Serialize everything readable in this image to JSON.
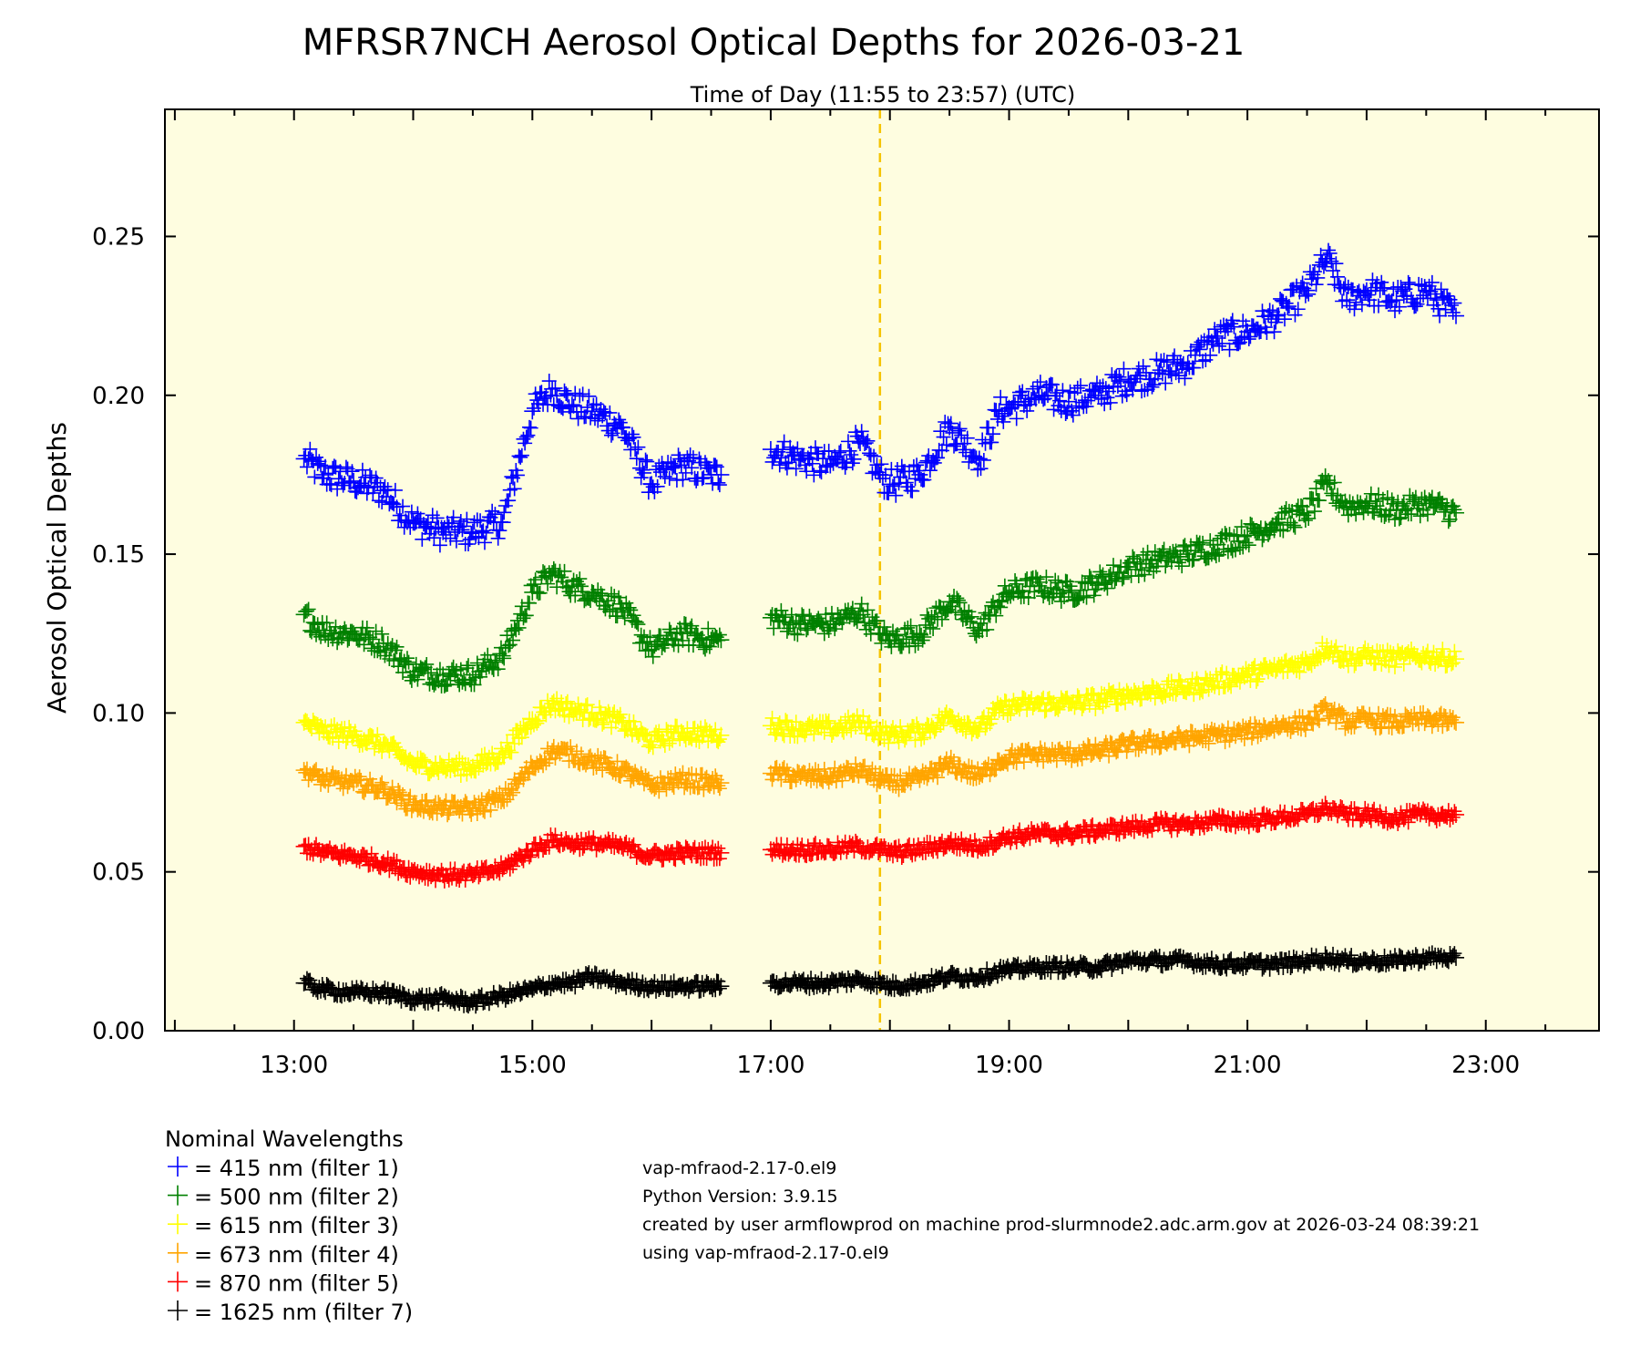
{
  "chart_data": {
    "type": "scatter",
    "title": "MFRSR7NCH Aerosol Optical Depths for 2026-03-21",
    "subtitle": "Time of Day (11:55 to 23:57) (UTC)",
    "xlabel": "",
    "ylabel": "Aerosol Optical Depths",
    "xlim": [
      "11:55",
      "23:57"
    ],
    "ylim": [
      0.0,
      0.29
    ],
    "x_ticks": [
      "13:00",
      "15:00",
      "17:00",
      "19:00",
      "21:00",
      "23:00"
    ],
    "y_ticks": [
      "0.00",
      "0.05",
      "0.10",
      "0.15",
      "0.20",
      "0.25"
    ],
    "marker": "+",
    "grid": false,
    "background_color": "#fefde0",
    "reference_line": {
      "x": "17:55",
      "color": "#f5c400",
      "style": "dashed"
    },
    "legend_title": "Nominal Wavelengths",
    "legend_placement": "bottom-left",
    "series": [
      {
        "name": "= 415 nm (filter 1)",
        "color": "#0000ff",
        "x": [
          "13:05",
          "13:15",
          "13:30",
          "13:45",
          "14:00",
          "14:15",
          "14:30",
          "14:45",
          "15:00",
          "15:10",
          "15:20",
          "15:30",
          "15:45",
          "16:00",
          "16:15",
          "16:30",
          "16:35",
          "17:00",
          "17:15",
          "17:30",
          "17:45",
          "17:55",
          "18:00",
          "18:15",
          "18:30",
          "18:45",
          "18:55",
          "19:00",
          "19:15",
          "19:30",
          "19:45",
          "20:00",
          "20:15",
          "20:30",
          "20:45",
          "21:00",
          "21:15",
          "21:30",
          "21:40",
          "21:50",
          "22:00",
          "22:15",
          "22:30",
          "22:45"
        ],
        "y": [
          0.18,
          0.175,
          0.173,
          0.17,
          0.16,
          0.157,
          0.157,
          0.16,
          0.195,
          0.202,
          0.197,
          0.195,
          0.19,
          0.172,
          0.178,
          0.175,
          0.175,
          0.183,
          0.18,
          0.178,
          0.185,
          0.175,
          0.172,
          0.175,
          0.19,
          0.18,
          0.195,
          0.196,
          0.2,
          0.198,
          0.2,
          0.205,
          0.207,
          0.21,
          0.218,
          0.22,
          0.225,
          0.233,
          0.243,
          0.23,
          0.233,
          0.23,
          0.233,
          0.225
        ]
      },
      {
        "name": "= 500 nm (filter 2)",
        "color": "#008000",
        "x": [
          "13:05",
          "13:15",
          "13:30",
          "13:45",
          "14:00",
          "14:15",
          "14:30",
          "14:45",
          "15:00",
          "15:10",
          "15:20",
          "15:30",
          "15:45",
          "16:00",
          "16:15",
          "16:30",
          "16:35",
          "17:00",
          "17:15",
          "17:30",
          "17:45",
          "17:55",
          "18:00",
          "18:15",
          "18:30",
          "18:45",
          "18:55",
          "19:00",
          "19:15",
          "19:30",
          "19:45",
          "20:00",
          "20:15",
          "20:30",
          "20:45",
          "21:00",
          "21:15",
          "21:30",
          "21:40",
          "21:50",
          "22:00",
          "22:15",
          "22:30",
          "22:45"
        ],
        "y": [
          0.131,
          0.126,
          0.125,
          0.122,
          0.113,
          0.112,
          0.112,
          0.118,
          0.138,
          0.144,
          0.14,
          0.138,
          0.133,
          0.12,
          0.125,
          0.123,
          0.123,
          0.13,
          0.128,
          0.128,
          0.132,
          0.125,
          0.123,
          0.125,
          0.135,
          0.126,
          0.135,
          0.138,
          0.14,
          0.138,
          0.141,
          0.146,
          0.148,
          0.15,
          0.153,
          0.156,
          0.16,
          0.163,
          0.172,
          0.165,
          0.166,
          0.164,
          0.166,
          0.163
        ]
      },
      {
        "name": "= 615 nm (filter 3)",
        "color": "#ffff00",
        "x": [
          "13:05",
          "13:15",
          "13:30",
          "13:45",
          "14:00",
          "14:15",
          "14:30",
          "14:45",
          "15:00",
          "15:10",
          "15:20",
          "15:30",
          "15:45",
          "16:00",
          "16:15",
          "16:30",
          "16:35",
          "17:00",
          "17:15",
          "17:30",
          "17:45",
          "17:55",
          "18:00",
          "18:15",
          "18:30",
          "18:45",
          "18:55",
          "19:00",
          "19:15",
          "19:30",
          "19:45",
          "20:00",
          "20:15",
          "20:30",
          "20:45",
          "21:00",
          "21:15",
          "21:30",
          "21:40",
          "21:50",
          "22:00",
          "22:15",
          "22:30",
          "22:45"
        ],
        "y": [
          0.097,
          0.094,
          0.093,
          0.09,
          0.084,
          0.083,
          0.083,
          0.087,
          0.098,
          0.103,
          0.101,
          0.1,
          0.097,
          0.091,
          0.094,
          0.093,
          0.093,
          0.096,
          0.095,
          0.095,
          0.097,
          0.094,
          0.093,
          0.094,
          0.099,
          0.095,
          0.101,
          0.102,
          0.103,
          0.103,
          0.104,
          0.106,
          0.107,
          0.108,
          0.11,
          0.112,
          0.114,
          0.116,
          0.121,
          0.117,
          0.118,
          0.117,
          0.118,
          0.117
        ]
      },
      {
        "name": "= 673 nm (filter 4)",
        "color": "#ffa500",
        "x": [
          "13:05",
          "13:15",
          "13:30",
          "13:45",
          "14:00",
          "14:15",
          "14:30",
          "14:45",
          "15:00",
          "15:10",
          "15:20",
          "15:30",
          "15:45",
          "16:00",
          "16:15",
          "16:30",
          "16:35",
          "17:00",
          "17:15",
          "17:30",
          "17:45",
          "17:55",
          "18:00",
          "18:15",
          "18:30",
          "18:45",
          "18:55",
          "19:00",
          "19:15",
          "19:30",
          "19:45",
          "20:00",
          "20:15",
          "20:30",
          "20:45",
          "21:00",
          "21:15",
          "21:30",
          "21:40",
          "21:50",
          "22:00",
          "22:15",
          "22:30",
          "22:45"
        ],
        "y": [
          0.082,
          0.079,
          0.078,
          0.076,
          0.071,
          0.07,
          0.07,
          0.073,
          0.083,
          0.088,
          0.087,
          0.085,
          0.082,
          0.077,
          0.079,
          0.078,
          0.078,
          0.081,
          0.08,
          0.08,
          0.082,
          0.079,
          0.078,
          0.079,
          0.084,
          0.08,
          0.085,
          0.086,
          0.087,
          0.087,
          0.088,
          0.09,
          0.091,
          0.092,
          0.093,
          0.094,
          0.096,
          0.097,
          0.101,
          0.097,
          0.098,
          0.097,
          0.098,
          0.097
        ]
      },
      {
        "name": "= 870 nm (filter 5)",
        "color": "#ff0000",
        "x": [
          "13:05",
          "13:15",
          "13:30",
          "13:45",
          "14:00",
          "14:15",
          "14:30",
          "14:45",
          "15:00",
          "15:10",
          "15:20",
          "15:30",
          "15:45",
          "16:00",
          "16:15",
          "16:30",
          "16:35",
          "17:00",
          "17:15",
          "17:30",
          "17:45",
          "17:55",
          "18:00",
          "18:15",
          "18:30",
          "18:45",
          "18:55",
          "19:00",
          "19:15",
          "19:30",
          "19:45",
          "20:00",
          "20:15",
          "20:30",
          "20:45",
          "21:00",
          "21:15",
          "21:30",
          "21:40",
          "21:50",
          "22:00",
          "22:15",
          "22:30",
          "22:45"
        ],
        "y": [
          0.058,
          0.056,
          0.055,
          0.053,
          0.05,
          0.049,
          0.049,
          0.051,
          0.057,
          0.06,
          0.059,
          0.059,
          0.058,
          0.055,
          0.056,
          0.056,
          0.056,
          0.057,
          0.057,
          0.057,
          0.058,
          0.057,
          0.056,
          0.057,
          0.059,
          0.058,
          0.06,
          0.061,
          0.062,
          0.062,
          0.063,
          0.064,
          0.065,
          0.065,
          0.066,
          0.066,
          0.067,
          0.068,
          0.07,
          0.068,
          0.068,
          0.067,
          0.068,
          0.068
        ]
      },
      {
        "name": "= 1625 nm (filter 7)",
        "color": "#000000",
        "x": [
          "13:05",
          "13:15",
          "13:30",
          "13:45",
          "14:00",
          "14:15",
          "14:30",
          "14:45",
          "15:00",
          "15:10",
          "15:20",
          "15:30",
          "15:45",
          "16:00",
          "16:15",
          "16:30",
          "16:35",
          "17:00",
          "17:15",
          "17:30",
          "17:45",
          "17:55",
          "18:00",
          "18:15",
          "18:30",
          "18:45",
          "18:55",
          "19:00",
          "19:15",
          "19:30",
          "19:45",
          "20:00",
          "20:15",
          "20:30",
          "20:45",
          "21:00",
          "21:15",
          "21:30",
          "21:40",
          "21:50",
          "22:00",
          "22:15",
          "22:30",
          "22:45"
        ],
        "y": [
          0.015,
          0.013,
          0.012,
          0.012,
          0.01,
          0.01,
          0.009,
          0.011,
          0.013,
          0.015,
          0.015,
          0.017,
          0.015,
          0.014,
          0.014,
          0.014,
          0.014,
          0.015,
          0.015,
          0.015,
          0.016,
          0.015,
          0.014,
          0.015,
          0.017,
          0.017,
          0.019,
          0.019,
          0.02,
          0.02,
          0.02,
          0.022,
          0.022,
          0.022,
          0.021,
          0.021,
          0.021,
          0.022,
          0.023,
          0.022,
          0.022,
          0.022,
          0.023,
          0.023
        ]
      }
    ]
  },
  "footer": {
    "lines": [
      "vap-mfraod-2.17-0.el9",
      "Python Version: 3.9.15",
      "created by user armflowprod on machine prod-slurmnode2.adc.arm.gov at 2026-03-24 08:39:21",
      "using vap-mfraod-2.17-0.el9"
    ]
  }
}
